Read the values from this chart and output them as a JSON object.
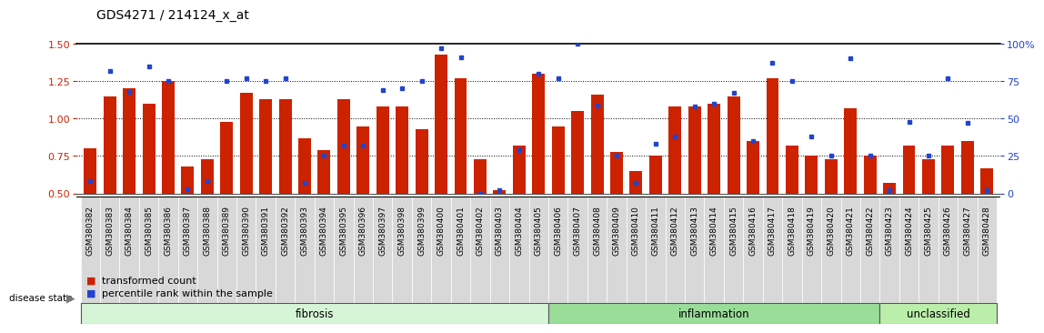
{
  "title": "GDS4271 / 214124_x_at",
  "samples": [
    "GSM380382",
    "GSM380383",
    "GSM380384",
    "GSM380385",
    "GSM380386",
    "GSM380387",
    "GSM380388",
    "GSM380389",
    "GSM380390",
    "GSM380391",
    "GSM380392",
    "GSM380393",
    "GSM380394",
    "GSM380395",
    "GSM380396",
    "GSM380397",
    "GSM380398",
    "GSM380399",
    "GSM380400",
    "GSM380401",
    "GSM380402",
    "GSM380403",
    "GSM380404",
    "GSM380405",
    "GSM380406",
    "GSM380407",
    "GSM380408",
    "GSM380409",
    "GSM380410",
    "GSM380411",
    "GSM380412",
    "GSM380413",
    "GSM380414",
    "GSM380415",
    "GSM380416",
    "GSM380417",
    "GSM380418",
    "GSM380419",
    "GSM380420",
    "GSM380421",
    "GSM380422",
    "GSM380423",
    "GSM380424",
    "GSM380425",
    "GSM380426",
    "GSM380427",
    "GSM380428"
  ],
  "red_values": [
    0.8,
    1.15,
    1.2,
    1.1,
    1.25,
    0.68,
    0.73,
    0.98,
    1.17,
    1.13,
    1.13,
    0.87,
    0.79,
    1.13,
    0.95,
    1.08,
    1.08,
    0.93,
    1.43,
    1.27,
    0.73,
    0.52,
    0.82,
    1.3,
    0.95,
    1.05,
    1.16,
    0.78,
    0.65,
    0.75,
    1.08,
    1.08,
    1.1,
    1.15,
    0.85,
    1.27,
    0.82,
    0.75,
    0.73,
    1.07,
    0.75,
    0.57,
    0.82,
    0.73,
    0.82,
    0.85,
    0.67
  ],
  "blue_percentiles": [
    8,
    82,
    68,
    85,
    75,
    3,
    8,
    75,
    77,
    75,
    77,
    7,
    25,
    32,
    32,
    69,
    70,
    75,
    97,
    91,
    0,
    2,
    29,
    80,
    77,
    100,
    59,
    25,
    7,
    33,
    38,
    58,
    60,
    67,
    35,
    87,
    75,
    38,
    25,
    90,
    25,
    2,
    48,
    25,
    77,
    47,
    2
  ],
  "groups": [
    {
      "label": "fibrosis",
      "start": 0,
      "end": 24,
      "color": "#d6f5d6"
    },
    {
      "label": "inflammation",
      "start": 24,
      "end": 41,
      "color": "#99dd99"
    },
    {
      "label": "unclassified",
      "start": 41,
      "end": 47,
      "color": "#bbeeaa"
    }
  ],
  "ylim_left": [
    0.5,
    1.5
  ],
  "ylim_right": [
    0,
    100
  ],
  "yticks_left": [
    0.5,
    0.75,
    1.0,
    1.25,
    1.5
  ],
  "yticks_right": [
    0,
    25,
    50,
    75,
    100
  ],
  "hlines": [
    0.75,
    1.0,
    1.25
  ],
  "bar_color": "#cc2200",
  "dot_color": "#2244cc",
  "title_fontsize": 10,
  "tick_fontsize": 6.5,
  "group_fontsize": 8.5
}
